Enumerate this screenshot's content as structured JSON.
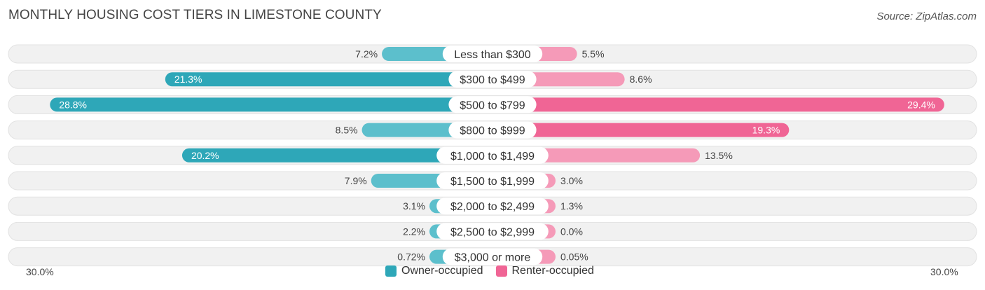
{
  "header": {
    "title": "MONTHLY HOUSING COST TIERS IN LIMESTONE COUNTY",
    "source": "Source: ZipAtlas.com"
  },
  "colors": {
    "owner": "#5cbfcc",
    "owner_strong": "#2ea7b8",
    "renter": "#f59ab8",
    "renter_strong": "#f06595",
    "track": "#f1f1f1"
  },
  "chart_data": {
    "type": "bar",
    "orientation": "horizontal-diverging",
    "categories": [
      "Less than $300",
      "$300 to $499",
      "$500 to $799",
      "$800 to $999",
      "$1,000 to $1,499",
      "$1,500 to $1,999",
      "$2,000 to $2,499",
      "$2,500 to $2,999",
      "$3,000 or more"
    ],
    "series": [
      {
        "name": "Owner-occupied",
        "values": [
          7.2,
          21.3,
          28.8,
          8.5,
          20.2,
          7.9,
          3.1,
          2.2,
          0.72
        ],
        "labels": [
          "7.2%",
          "21.3%",
          "28.8%",
          "8.5%",
          "20.2%",
          "7.9%",
          "3.1%",
          "2.2%",
          "0.72%"
        ]
      },
      {
        "name": "Renter-occupied",
        "values": [
          5.5,
          8.6,
          29.4,
          19.3,
          13.5,
          3.0,
          1.3,
          0.0,
          0.05
        ],
        "labels": [
          "5.5%",
          "8.6%",
          "29.4%",
          "19.3%",
          "13.5%",
          "3.0%",
          "1.3%",
          "0.0%",
          "0.05%"
        ]
      }
    ],
    "xlim": [
      -30,
      30
    ],
    "axis_labels": {
      "left": "30.0%",
      "right": "30.0%"
    },
    "legend": "bottom-center"
  }
}
